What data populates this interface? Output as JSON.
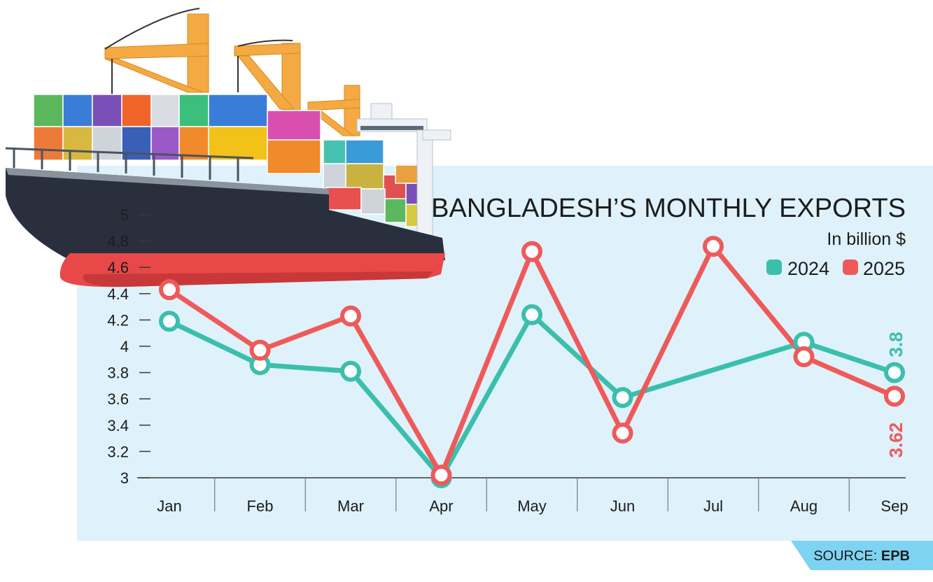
{
  "chart_data": {
    "type": "line",
    "title": "BANGLADESH’S MONTHLY EXPORTS",
    "subtitle": "In billion $",
    "categories": [
      "Jan",
      "Feb",
      "Mar",
      "Apr",
      "May",
      "Jun",
      "Jul",
      "Aug",
      "Sep"
    ],
    "series": [
      {
        "name": "2024",
        "color": "#3bbfad",
        "values": [
          4.19,
          3.86,
          3.81,
          3.0,
          4.24,
          3.61,
          null,
          4.03,
          3.8
        ]
      },
      {
        "name": "2025",
        "color": "#ee5a5a",
        "values": [
          4.43,
          3.97,
          4.23,
          3.02,
          4.72,
          3.34,
          4.76,
          3.92,
          3.62
        ]
      }
    ],
    "end_labels": {
      "2024": "3.8",
      "2025": "3.62"
    },
    "yticks": [
      "3",
      "3.2",
      "3.4",
      "3.6",
      "3.8",
      "4",
      "4.2",
      "4.4",
      "4.6",
      "4.8",
      "5"
    ],
    "ylim": [
      3,
      5
    ],
    "grid": false,
    "legend_position": "top-right"
  },
  "source": {
    "prefix": "SOURCE:",
    "name": "EPB"
  },
  "colors": {
    "panel": "#dff1fb",
    "source_band": "#7fd3f2",
    "series_2024": "#3bbfad",
    "series_2025": "#ee5a5a"
  }
}
